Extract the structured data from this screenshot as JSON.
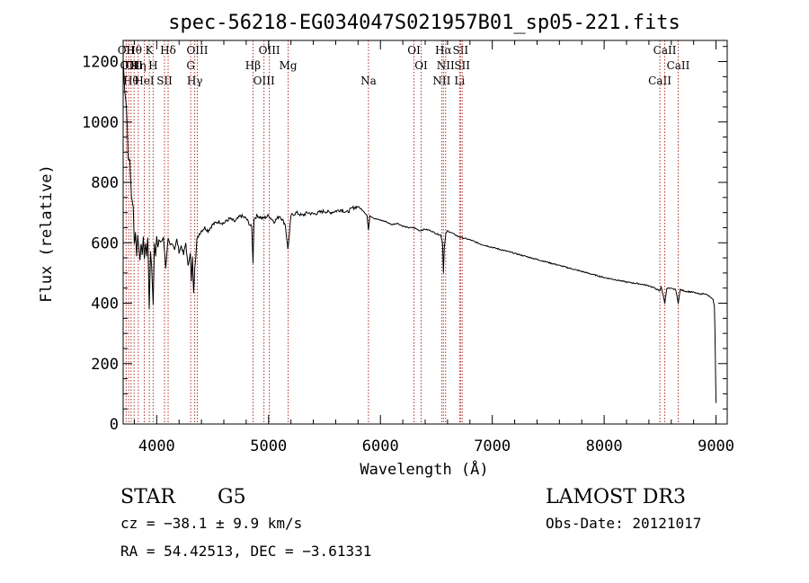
{
  "chart_data": {
    "type": "line",
    "title": "spec-56218-EG034047S021957B01_sp05-221.fits",
    "xlabel": "Wavelength (Å)",
    "ylabel": "Flux (relative)",
    "xlim": [
      3700,
      9100
    ],
    "ylim": [
      0,
      1270
    ],
    "xticks": [
      4000,
      5000,
      6000,
      7000,
      8000,
      9000
    ],
    "yticks": [
      0,
      200,
      400,
      600,
      800,
      1000,
      1200
    ],
    "grid": false,
    "legend": "none",
    "line_color": "#000000",
    "marker_color": "#b03030",
    "series": [
      {
        "x": [
          3700,
          3715,
          3730,
          3745,
          3760,
          3775,
          3790,
          3800,
          3810,
          3820,
          3830,
          3840,
          3850,
          3860,
          3870,
          3880,
          3890,
          3900,
          3910,
          3920,
          3933,
          3945,
          3955,
          3968,
          3980,
          3990,
          4000,
          4010,
          4020,
          4040,
          4060,
          4080,
          4102,
          4120,
          4140,
          4160,
          4180,
          4200,
          4220,
          4240,
          4260,
          4280,
          4300,
          4310,
          4320,
          4330,
          4340,
          4350,
          4360,
          4380,
          4400,
          4430,
          4460,
          4500,
          4550,
          4600,
          4650,
          4700,
          4750,
          4800,
          4850,
          4861,
          4870,
          4900,
          4950,
          5000,
          5050,
          5100,
          5150,
          5172,
          5185,
          5200,
          5250,
          5300,
          5350,
          5400,
          5450,
          5500,
          5550,
          5600,
          5650,
          5700,
          5750,
          5800,
          5850,
          5880,
          5893,
          5905,
          5950,
          6000,
          6050,
          6100,
          6150,
          6200,
          6250,
          6300,
          6350,
          6400,
          6450,
          6500,
          6540,
          6555,
          6563,
          6570,
          6585,
          6600,
          6650,
          6700,
          6750,
          6800,
          6900,
          7000,
          7100,
          7200,
          7300,
          7400,
          7500,
          7600,
          7700,
          7800,
          7900,
          8000,
          8100,
          8200,
          8300,
          8400,
          8450,
          8498,
          8510,
          8542,
          8560,
          8600,
          8640,
          8662,
          8680,
          8720,
          8760,
          8800,
          8850,
          8900,
          8950,
          8975,
          8985,
          8990,
          8995,
          9000
        ],
        "y": [
          1210,
          1100,
          1050,
          880,
          870,
          750,
          720,
          600,
          630,
          560,
          620,
          590,
          540,
          600,
          560,
          620,
          550,
          600,
          560,
          620,
          380,
          570,
          520,
          400,
          600,
          560,
          620,
          580,
          610,
          600,
          620,
          520,
          610,
          590,
          600,
          580,
          610,
          570,
          590,
          560,
          600,
          520,
          570,
          470,
          550,
          430,
          520,
          560,
          610,
          630,
          640,
          650,
          640,
          660,
          670,
          665,
          680,
          670,
          690,
          680,
          650,
          530,
          680,
          690,
          680,
          690,
          670,
          690,
          660,
          580,
          620,
          690,
          700,
          690,
          700,
          695,
          700,
          705,
          700,
          705,
          710,
          700,
          715,
          720,
          705,
          690,
          640,
          690,
          680,
          675,
          670,
          660,
          665,
          655,
          650,
          650,
          640,
          645,
          640,
          630,
          625,
          600,
          500,
          580,
          630,
          640,
          630,
          620,
          615,
          610,
          595,
          585,
          575,
          565,
          555,
          545,
          535,
          525,
          515,
          505,
          495,
          485,
          478,
          470,
          465,
          458,
          450,
          440,
          455,
          400,
          450,
          448,
          445,
          400,
          445,
          440,
          438,
          436,
          430,
          432,
          420,
          410,
          390,
          320,
          200,
          70
        ]
      }
    ],
    "line_markers": [
      {
        "x": 3727,
        "labels": [
          "OII"
        ]
      },
      {
        "x": 3750,
        "labels": [
          "OII"
        ]
      },
      {
        "x": 3771,
        "labels": [
          "Hθ"
        ]
      },
      {
        "x": 3798,
        "labels": [
          "Hθ",
          "OII"
        ]
      },
      {
        "x": 3835,
        "labels": [
          "Hη"
        ]
      },
      {
        "x": 3889,
        "labels": [
          "HeI"
        ]
      },
      {
        "x": 3934,
        "labels": [
          "K"
        ]
      },
      {
        "x": 3968,
        "labels": [
          "H"
        ]
      },
      {
        "x": 4070,
        "labels": [
          "SII"
        ]
      },
      {
        "x": 4102,
        "labels": [
          "Hδ"
        ]
      },
      {
        "x": 4304,
        "labels": [
          "G"
        ]
      },
      {
        "x": 4340,
        "labels": [
          "Hγ"
        ]
      },
      {
        "x": 4363,
        "labels": [
          "OIII"
        ]
      },
      {
        "x": 4861,
        "labels": [
          "Hβ"
        ]
      },
      {
        "x": 4959,
        "labels": [
          "OIII"
        ]
      },
      {
        "x": 5007,
        "labels": [
          "OIII"
        ]
      },
      {
        "x": 5175,
        "labels": [
          "Mg"
        ]
      },
      {
        "x": 5893,
        "labels": [
          "Na"
        ]
      },
      {
        "x": 6300,
        "labels": [
          "OI"
        ]
      },
      {
        "x": 6364,
        "labels": [
          "OI"
        ]
      },
      {
        "x": 6548,
        "labels": [
          "NII"
        ]
      },
      {
        "x": 6563,
        "labels": [
          "Hα"
        ]
      },
      {
        "x": 6583,
        "labels": [
          "NII"
        ]
      },
      {
        "x": 6708,
        "labels": [
          "Li"
        ]
      },
      {
        "x": 6716,
        "labels": [
          "SII"
        ]
      },
      {
        "x": 6731,
        "labels": [
          "SII"
        ]
      },
      {
        "x": 8498,
        "labels": [
          "CaII"
        ]
      },
      {
        "x": 8542,
        "labels": [
          "CaII"
        ]
      },
      {
        "x": 8662,
        "labels": [
          "CaII"
        ]
      }
    ]
  },
  "info": {
    "class": "STAR",
    "subclass": "G5",
    "cz": "cz = −38.1 ± 9.9 km/s",
    "radec": "RA =  54.42513, DEC =  −3.61331",
    "survey": "LAMOST DR3",
    "obsdate": "Obs-Date: 20121017"
  }
}
